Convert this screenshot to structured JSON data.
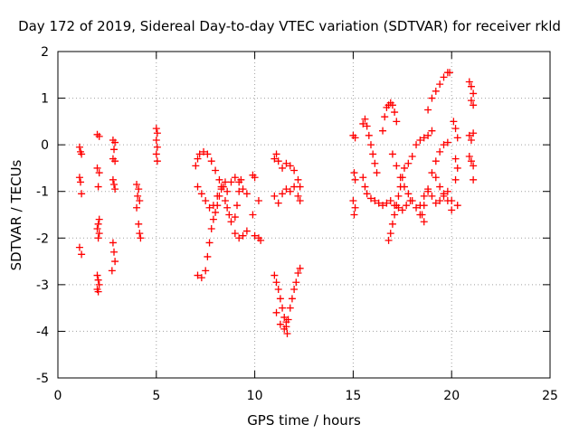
{
  "chart_data": {
    "type": "scatter",
    "title": "Day 172 of 2019, Sidereal Day-to-day VTEC variation (SDTVAR) for receiver rkld",
    "xlabel": "GPS time / hours",
    "ylabel": "SDTVAR / TECUs",
    "xlim": [
      0,
      25
    ],
    "ylim": [
      -5,
      2
    ],
    "xticks": [
      0,
      5,
      10,
      15,
      20,
      25
    ],
    "yticks": [
      -5,
      -4,
      -3,
      -2,
      -1,
      0,
      1,
      2
    ],
    "grid": true,
    "marker": "+",
    "color": "#ff0000",
    "series": [
      {
        "points": [
          [
            1.1,
            -0.05
          ],
          [
            1.15,
            -0.15
          ],
          [
            1.2,
            -0.2
          ],
          [
            1.1,
            -0.7
          ],
          [
            1.15,
            -0.8
          ],
          [
            1.2,
            -1.05
          ],
          [
            1.1,
            -2.2
          ],
          [
            1.2,
            -2.35
          ],
          [
            2.0,
            0.22
          ],
          [
            2.1,
            0.18
          ],
          [
            2.0,
            -0.5
          ],
          [
            2.1,
            -0.6
          ],
          [
            2.05,
            -0.9
          ],
          [
            2.1,
            -1.6
          ],
          [
            2.05,
            -1.7
          ],
          [
            2.0,
            -1.8
          ],
          [
            2.1,
            -1.9
          ],
          [
            2.05,
            -2.0
          ],
          [
            2.0,
            -2.8
          ],
          [
            2.05,
            -2.9
          ],
          [
            2.1,
            -3.0
          ],
          [
            2.0,
            -3.1
          ],
          [
            2.05,
            -3.15
          ],
          [
            2.8,
            0.1
          ],
          [
            2.9,
            0.05
          ],
          [
            2.85,
            -0.1
          ],
          [
            2.8,
            -0.3
          ],
          [
            2.9,
            -0.35
          ],
          [
            2.8,
            -0.75
          ],
          [
            2.85,
            -0.85
          ],
          [
            2.9,
            -0.95
          ],
          [
            2.8,
            -2.1
          ],
          [
            2.85,
            -2.3
          ],
          [
            2.9,
            -2.5
          ],
          [
            2.75,
            -2.7
          ],
          [
            4.0,
            -0.85
          ],
          [
            4.1,
            -0.95
          ],
          [
            4.05,
            -1.1
          ],
          [
            4.15,
            -1.2
          ],
          [
            4.0,
            -1.35
          ],
          [
            4.1,
            -1.7
          ],
          [
            4.15,
            -1.9
          ],
          [
            4.2,
            -2.0
          ],
          [
            5.0,
            0.35
          ],
          [
            5.05,
            0.25
          ],
          [
            5.0,
            0.1
          ],
          [
            5.05,
            -0.05
          ],
          [
            5.0,
            -0.2
          ],
          [
            5.05,
            -0.35
          ],
          [
            7.0,
            -0.45
          ],
          [
            7.1,
            -0.3
          ],
          [
            7.2,
            -0.2
          ],
          [
            7.4,
            -0.15
          ],
          [
            7.6,
            -0.2
          ],
          [
            7.8,
            -0.35
          ],
          [
            8.0,
            -0.55
          ],
          [
            8.2,
            -0.75
          ],
          [
            8.4,
            -0.9
          ],
          [
            8.6,
            -1.0
          ],
          [
            7.1,
            -0.9
          ],
          [
            7.3,
            -1.05
          ],
          [
            7.5,
            -1.2
          ],
          [
            7.7,
            -1.35
          ],
          [
            7.9,
            -1.3
          ],
          [
            8.1,
            -1.1
          ],
          [
            8.3,
            -0.9
          ],
          [
            8.5,
            -0.8
          ],
          [
            7.1,
            -2.8
          ],
          [
            7.3,
            -2.85
          ],
          [
            7.5,
            -2.7
          ],
          [
            7.6,
            -2.4
          ],
          [
            7.7,
            -2.1
          ],
          [
            7.8,
            -1.8
          ],
          [
            7.9,
            -1.6
          ],
          [
            8.0,
            -1.45
          ],
          [
            8.1,
            -1.3
          ],
          [
            8.2,
            -1.1
          ],
          [
            8.3,
            -0.95
          ],
          [
            8.5,
            -1.2
          ],
          [
            8.6,
            -1.35
          ],
          [
            8.7,
            -1.5
          ],
          [
            8.8,
            -1.65
          ],
          [
            9.0,
            -1.55
          ],
          [
            9.1,
            -1.3
          ],
          [
            9.2,
            -1.0
          ],
          [
            9.3,
            -0.75
          ],
          [
            8.8,
            -0.8
          ],
          [
            9.0,
            -0.7
          ],
          [
            9.2,
            -0.8
          ],
          [
            9.4,
            -0.95
          ],
          [
            9.6,
            -1.05
          ],
          [
            9.0,
            -1.9
          ],
          [
            9.2,
            -2.0
          ],
          [
            9.4,
            -1.95
          ],
          [
            9.6,
            -1.85
          ],
          [
            9.9,
            -0.65
          ],
          [
            10.0,
            -0.7
          ],
          [
            9.9,
            -1.5
          ],
          [
            10.2,
            -1.2
          ],
          [
            10.0,
            -1.95
          ],
          [
            10.2,
            -2.0
          ],
          [
            10.3,
            -2.05
          ],
          [
            11.0,
            -0.3
          ],
          [
            11.1,
            -0.2
          ],
          [
            11.2,
            -0.35
          ],
          [
            11.4,
            -0.5
          ],
          [
            11.6,
            -0.4
          ],
          [
            11.8,
            -0.45
          ],
          [
            12.0,
            -0.55
          ],
          [
            12.2,
            -0.75
          ],
          [
            12.3,
            -0.9
          ],
          [
            11.0,
            -1.1
          ],
          [
            11.2,
            -1.25
          ],
          [
            11.4,
            -1.05
          ],
          [
            11.6,
            -0.95
          ],
          [
            11.8,
            -1.0
          ],
          [
            12.0,
            -0.9
          ],
          [
            12.2,
            -1.1
          ],
          [
            12.3,
            -1.2
          ],
          [
            11.0,
            -2.8
          ],
          [
            11.1,
            -2.95
          ],
          [
            11.2,
            -3.1
          ],
          [
            11.3,
            -3.3
          ],
          [
            11.4,
            -3.5
          ],
          [
            11.5,
            -3.7
          ],
          [
            11.6,
            -3.9
          ],
          [
            11.65,
            -4.05
          ],
          [
            11.7,
            -3.75
          ],
          [
            11.8,
            -3.5
          ],
          [
            11.9,
            -3.3
          ],
          [
            12.0,
            -3.1
          ],
          [
            12.1,
            -2.95
          ],
          [
            12.2,
            -2.75
          ],
          [
            12.3,
            -2.65
          ],
          [
            11.1,
            -3.6
          ],
          [
            11.3,
            -3.85
          ],
          [
            11.5,
            -3.95
          ],
          [
            11.6,
            -3.8
          ],
          [
            15.0,
            0.2
          ],
          [
            15.1,
            0.15
          ],
          [
            15.05,
            -0.6
          ],
          [
            15.1,
            -0.75
          ],
          [
            15.0,
            -1.2
          ],
          [
            15.1,
            -1.35
          ],
          [
            15.05,
            -1.5
          ],
          [
            15.5,
            0.45
          ],
          [
            15.6,
            0.55
          ],
          [
            15.7,
            0.4
          ],
          [
            15.8,
            0.2
          ],
          [
            15.9,
            0.0
          ],
          [
            16.0,
            -0.2
          ],
          [
            16.1,
            -0.4
          ],
          [
            16.2,
            -0.6
          ],
          [
            15.5,
            -0.7
          ],
          [
            15.6,
            -0.9
          ],
          [
            15.7,
            -1.05
          ],
          [
            15.9,
            -1.15
          ],
          [
            16.1,
            -1.2
          ],
          [
            16.3,
            -1.25
          ],
          [
            16.5,
            0.3
          ],
          [
            16.6,
            0.6
          ],
          [
            16.7,
            0.8
          ],
          [
            16.8,
            0.85
          ],
          [
            16.9,
            0.9
          ],
          [
            17.0,
            0.85
          ],
          [
            17.1,
            0.7
          ],
          [
            17.2,
            0.5
          ],
          [
            16.8,
            -2.05
          ],
          [
            16.9,
            -1.9
          ],
          [
            17.0,
            -1.7
          ],
          [
            17.1,
            -1.5
          ],
          [
            17.2,
            -1.3
          ],
          [
            17.3,
            -1.1
          ],
          [
            17.4,
            -0.9
          ],
          [
            17.5,
            -0.7
          ],
          [
            17.6,
            -0.5
          ],
          [
            16.5,
            -1.3
          ],
          [
            16.7,
            -1.25
          ],
          [
            16.9,
            -1.2
          ],
          [
            17.1,
            -1.3
          ],
          [
            17.3,
            -1.35
          ],
          [
            17.5,
            -1.4
          ],
          [
            17.7,
            -1.3
          ],
          [
            17.9,
            -1.2
          ],
          [
            17.0,
            -0.2
          ],
          [
            17.2,
            -0.45
          ],
          [
            17.4,
            -0.7
          ],
          [
            17.6,
            -0.9
          ],
          [
            17.8,
            -1.05
          ],
          [
            18.0,
            -1.2
          ],
          [
            18.2,
            -1.35
          ],
          [
            18.4,
            -1.5
          ],
          [
            18.6,
            -1.65
          ],
          [
            17.8,
            -0.4
          ],
          [
            18.0,
            -0.25
          ],
          [
            18.2,
            0.0
          ],
          [
            18.4,
            0.1
          ],
          [
            18.6,
            0.15
          ],
          [
            18.8,
            0.2
          ],
          [
            19.0,
            0.3
          ],
          [
            18.5,
            -1.5
          ],
          [
            18.6,
            -1.3
          ],
          [
            18.8,
            -0.95
          ],
          [
            19.0,
            -0.6
          ],
          [
            19.2,
            -0.35
          ],
          [
            19.4,
            -0.15
          ],
          [
            19.6,
            0.0
          ],
          [
            19.8,
            0.05
          ],
          [
            18.8,
            0.75
          ],
          [
            19.0,
            1.0
          ],
          [
            19.2,
            1.15
          ],
          [
            19.4,
            1.3
          ],
          [
            19.6,
            1.45
          ],
          [
            19.8,
            1.55
          ],
          [
            19.9,
            1.55
          ],
          [
            18.4,
            -1.3
          ],
          [
            18.6,
            -1.1
          ],
          [
            18.8,
            -1.0
          ],
          [
            19.0,
            -1.1
          ],
          [
            19.2,
            -1.25
          ],
          [
            19.4,
            -1.2
          ],
          [
            19.6,
            -1.1
          ],
          [
            19.8,
            -1.0
          ],
          [
            20.0,
            -1.2
          ],
          [
            19.2,
            -0.7
          ],
          [
            19.4,
            -0.9
          ],
          [
            19.6,
            -1.05
          ],
          [
            19.8,
            -1.2
          ],
          [
            20.0,
            -1.4
          ],
          [
            20.1,
            0.5
          ],
          [
            20.2,
            0.35
          ],
          [
            20.3,
            0.15
          ],
          [
            20.2,
            -0.3
          ],
          [
            20.3,
            -0.5
          ],
          [
            20.2,
            -0.75
          ],
          [
            20.3,
            -1.3
          ],
          [
            20.9,
            1.35
          ],
          [
            21.0,
            1.25
          ],
          [
            21.1,
            1.1
          ],
          [
            21.0,
            0.95
          ],
          [
            21.1,
            0.85
          ],
          [
            20.9,
            0.2
          ],
          [
            21.0,
            0.1
          ],
          [
            21.1,
            0.25
          ],
          [
            20.9,
            -0.25
          ],
          [
            21.0,
            -0.35
          ],
          [
            21.1,
            -0.45
          ],
          [
            21.1,
            -0.75
          ]
        ]
      }
    ]
  }
}
